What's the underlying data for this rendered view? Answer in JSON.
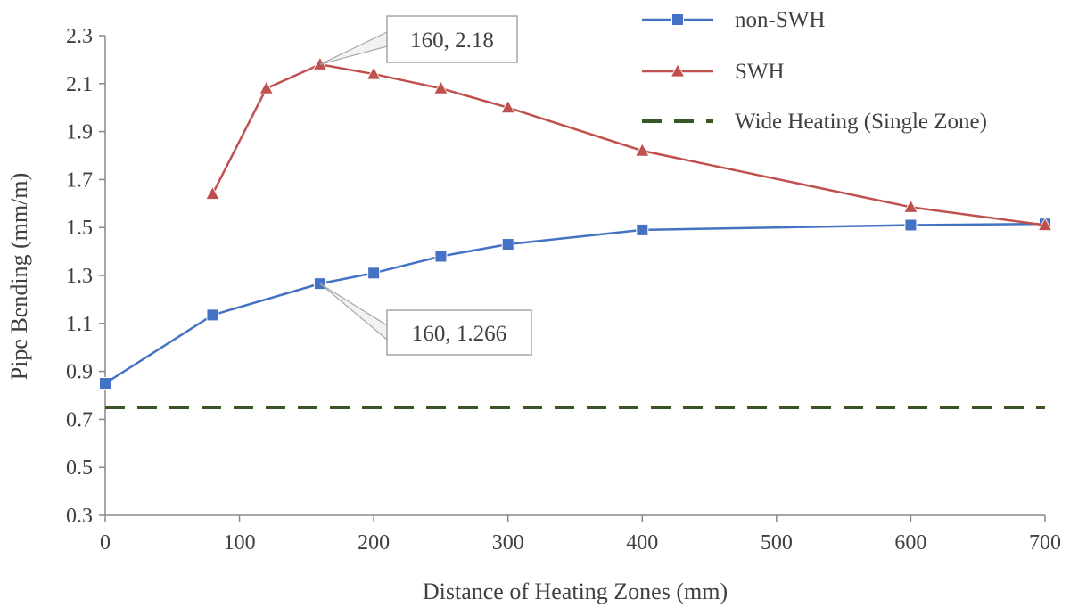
{
  "chart_data": {
    "type": "line",
    "title": "",
    "xlabel": "Distance of Heating Zones (mm)",
    "ylabel": "Pipe Bending (mm/m)",
    "xlim": [
      0,
      700
    ],
    "ylim": [
      0.3,
      2.3
    ],
    "xticks": [
      "0",
      "100",
      "200",
      "300",
      "400",
      "500",
      "600",
      "700"
    ],
    "yticks": [
      "0.3",
      "0.5",
      "0.7",
      "0.9",
      "1.1",
      "1.3",
      "1.5",
      "1.7",
      "1.9",
      "2.1",
      "2.3"
    ],
    "grid": false,
    "legend_position": "top-right",
    "series": [
      {
        "name": "non-SWH",
        "color": "#4472C4",
        "marker": "square",
        "x": [
          0,
          80,
          160,
          200,
          250,
          300,
          400,
          600,
          700
        ],
        "y": [
          0.85,
          1.135,
          1.266,
          1.31,
          1.38,
          1.43,
          1.49,
          1.51,
          1.515
        ]
      },
      {
        "name": "SWH",
        "color": "#C0504D",
        "marker": "triangle",
        "x": [
          80,
          120,
          160,
          200,
          250,
          300,
          400,
          600,
          700
        ],
        "y": [
          1.64,
          2.08,
          2.18,
          2.14,
          2.08,
          2.0,
          1.82,
          1.585,
          1.51
        ]
      },
      {
        "name": "Wide Heating (Single Zone)",
        "color": "#375623",
        "marker": "none",
        "dashed": true,
        "x": [
          0,
          700
        ],
        "y": [
          0.75,
          0.75
        ]
      }
    ],
    "annotations": [
      {
        "text": "160, 2.18",
        "x": 160,
        "y": 2.18,
        "series": "SWH"
      },
      {
        "text": "160, 1.266",
        "x": 160,
        "y": 1.266,
        "series": "non-SWH"
      }
    ]
  }
}
